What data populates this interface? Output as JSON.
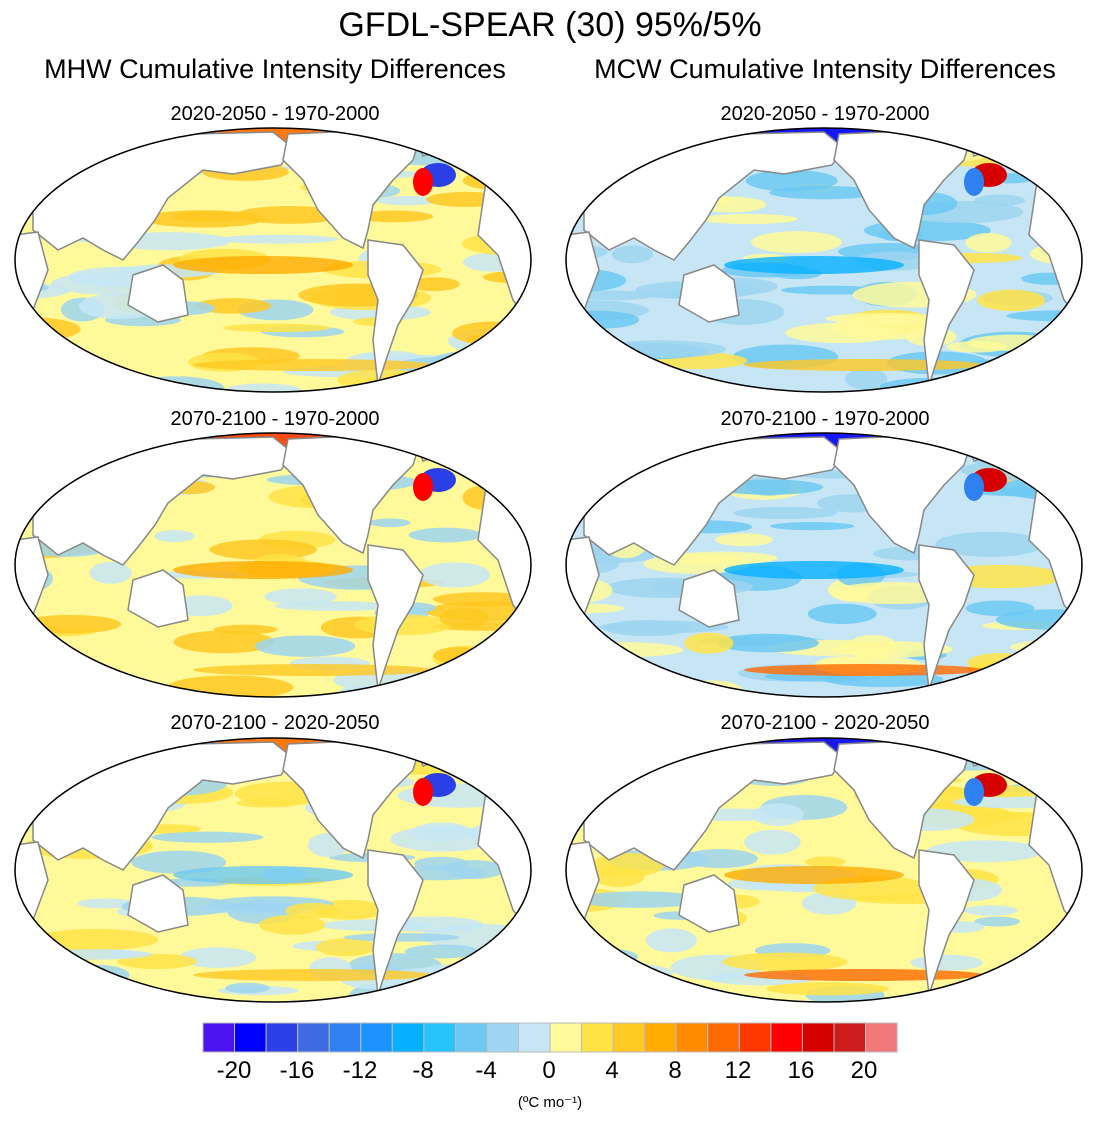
{
  "title": "GFDL-SPEAR (30) 95%/5%",
  "columns": [
    "MHW Cumulative Intensity Differences",
    "MCW Cumulative Intensity Differences"
  ],
  "panels": [
    {
      "title": "2020-2050 - 1970-2000",
      "column": 0,
      "row": 0,
      "dominant": "positive"
    },
    {
      "title": "2020-2050 - 1970-2000",
      "column": 1,
      "row": 0,
      "dominant": "negative"
    },
    {
      "title": "2070-2100 - 1970-2000",
      "column": 0,
      "row": 1,
      "dominant": "positive"
    },
    {
      "title": "2070-2100 - 1970-2000",
      "column": 1,
      "row": 1,
      "dominant": "negative"
    },
    {
      "title": "2070-2100 - 2020-2050",
      "column": 0,
      "row": 2,
      "dominant": "mixed"
    },
    {
      "title": "2070-2100 - 2020-2050",
      "column": 1,
      "row": 2,
      "dominant": "mixed"
    }
  ],
  "chart_data": {
    "type": "heatmap",
    "projection": "Robinson, Pacific-centered",
    "colorbar": {
      "ticks": [
        "-20",
        "-16",
        "-12",
        "-8",
        "-4",
        "0",
        "4",
        "8",
        "12",
        "16",
        "20"
      ],
      "tick_values": [
        -20,
        -16,
        -12,
        -8,
        -4,
        0,
        4,
        8,
        12,
        16,
        20
      ],
      "levels": [
        -20,
        -18,
        -16,
        -14,
        -12,
        -10,
        -8,
        -6,
        -4,
        -2,
        0,
        2,
        4,
        6,
        8,
        10,
        12,
        14,
        16,
        18,
        20
      ],
      "colors": [
        "#4b14f0",
        "#0000ff",
        "#2a3fe6",
        "#3f6be0",
        "#2f80f0",
        "#1b94ff",
        "#06b0ff",
        "#27c3fb",
        "#6cc8f2",
        "#9ed5f0",
        "#c6e6f6",
        "#fff99a",
        "#ffe345",
        "#ffc822",
        "#ffab00",
        "#ff8c00",
        "#ff6a00",
        "#ff3800",
        "#ff0000",
        "#d60000",
        "#cd1c1c",
        "#f07878"
      ],
      "unit": "(ºC mo⁻¹)"
    }
  }
}
